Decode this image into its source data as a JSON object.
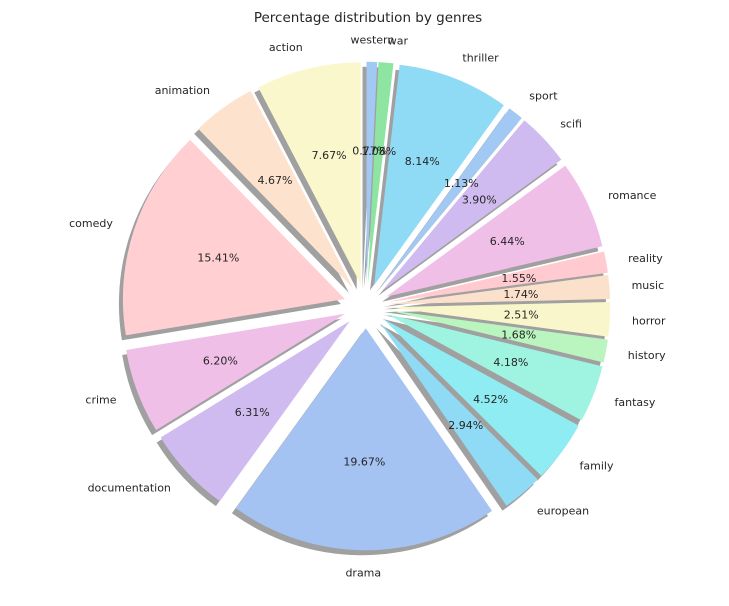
{
  "chart_data": {
    "type": "pie",
    "title": "Percentage distribution by genres",
    "start_angle_deg": 90,
    "direction": "clockwise",
    "shadow": true,
    "explode": 0.1,
    "slices": [
      {
        "label": "western",
        "value": 0.77,
        "pct_text": "0.77%",
        "color": "#a1c9f4"
      },
      {
        "label": "war",
        "value": 1.08,
        "pct_text": "1.08%",
        "color": "#8de5a1"
      },
      {
        "label": "thriller",
        "value": 8.14,
        "pct_text": "8.14%",
        "color": "#8fdaf4"
      },
      {
        "label": "sport",
        "value": 1.13,
        "pct_text": "1.13%",
        "color": "#a1c9f4"
      },
      {
        "label": "scifi",
        "value": 3.9,
        "pct_text": "3.90%",
        "color": "#d0bbf0"
      },
      {
        "label": "romance",
        "value": 6.44,
        "pct_text": "6.44%",
        "color": "#f0bfe8"
      },
      {
        "label": "reality",
        "value": 1.55,
        "pct_text": "1.55%",
        "color": "#ffcbd1"
      },
      {
        "label": "music",
        "value": 1.74,
        "pct_text": "1.74%",
        "color": "#fbe1cc"
      },
      {
        "label": "horror",
        "value": 2.51,
        "pct_text": "2.51%",
        "color": "#faf6cb"
      },
      {
        "label": "history",
        "value": 1.68,
        "pct_text": "1.68%",
        "color": "#baf4bf"
      },
      {
        "label": "fantasy",
        "value": 4.18,
        "pct_text": "4.18%",
        "color": "#9ff4e1"
      },
      {
        "label": "family",
        "value": 4.52,
        "pct_text": "4.52%",
        "color": "#8fecf3"
      },
      {
        "label": "european",
        "value": 2.94,
        "pct_text": "2.94%",
        "color": "#8fdaf4"
      },
      {
        "label": "drama",
        "value": 19.67,
        "pct_text": "19.67%",
        "color": "#a4c3f2"
      },
      {
        "label": "documentation",
        "value": 6.31,
        "pct_text": "6.31%",
        "color": "#d0bbf0"
      },
      {
        "label": "crime",
        "value": 6.2,
        "pct_text": "6.20%",
        "color": "#f0bfe8"
      },
      {
        "label": "comedy",
        "value": 15.41,
        "pct_text": "15.41%",
        "color": "#ffcfd2"
      },
      {
        "label": "animation",
        "value": 4.67,
        "pct_text": "4.67%",
        "color": "#fde2cd"
      },
      {
        "label": "action",
        "value": 7.67,
        "pct_text": "7.67%",
        "color": "#fbf7cd"
      }
    ]
  }
}
